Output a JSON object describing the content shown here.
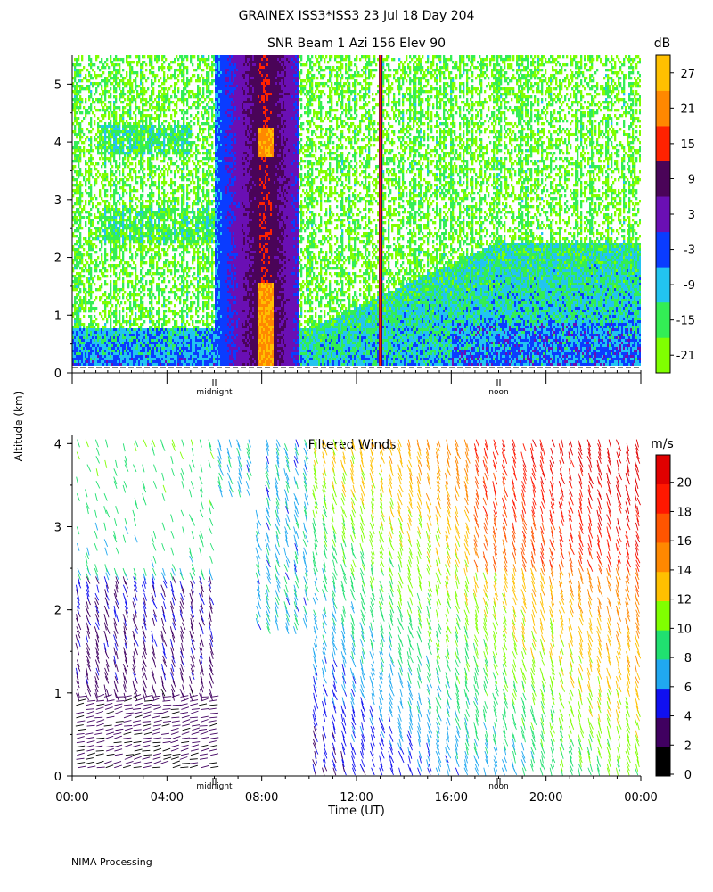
{
  "header": {
    "title": "GRAINEX ISS3*ISS3  23 Jul 18 Day 204",
    "footer": "NIMA Processing",
    "ylabel": "Altitude (km)"
  },
  "chart_data": [
    {
      "type": "heatmap",
      "title": "SNR Beam 1 Azi 156 Elev 90",
      "ylim": [
        0,
        5.5
      ],
      "yticks": [
        "0",
        "1",
        "2",
        "3",
        "4",
        "5"
      ],
      "xlim_hours": [
        0,
        24
      ],
      "markers": [
        {
          "label": "midnight",
          "hour": 6.0
        },
        {
          "label": "noon",
          "hour": 18.0
        }
      ],
      "colorbar": {
        "unit": "dB",
        "range": [
          -24,
          33
        ],
        "ticks": [
          "-21",
          "-15",
          "-9",
          "-3",
          "3",
          "9",
          "15",
          "21",
          "27"
        ],
        "colors": [
          "#80ff00",
          "#33ee55",
          "#22c4f0",
          "#0a3cff",
          "#6a0fb4",
          "#4a0458",
          "#ff2200",
          "#ff8800",
          "#ffc000"
        ]
      },
      "features": {
        "strong_band_hours": [
          7.8,
          8.4
        ],
        "strong_band_peak_altitude_km": 4.0,
        "boundary_layer_top_km": [
          0.8,
          2.3
        ],
        "vertical_streak_hour": 13.0
      }
    },
    {
      "type": "scatter",
      "title": "Filtered Winds",
      "xlabel": "Time (UT)",
      "xticks": [
        "00:00",
        "04:00",
        "08:00",
        "12:00",
        "16:00",
        "20:00",
        "00:00"
      ],
      "xtick_hours": [
        0,
        4,
        8,
        12,
        16,
        20,
        24
      ],
      "ylim": [
        0,
        4.1
      ],
      "yticks": [
        "0",
        "1",
        "2",
        "3",
        "4"
      ],
      "markers": [
        {
          "label": "midnight",
          "hour": 6.0
        },
        {
          "label": "noon",
          "hour": 18.0
        }
      ],
      "colorbar": {
        "unit": "m/s",
        "range": [
          0,
          22
        ],
        "ticks": [
          "0",
          "2",
          "4",
          "6",
          "8",
          "10",
          "12",
          "14",
          "16",
          "18",
          "20"
        ],
        "colors": [
          "#000000",
          "#400060",
          "#1010f0",
          "#20a8f0",
          "#20e070",
          "#80ff00",
          "#ffc000",
          "#ff8800",
          "#ff5500",
          "#ff1800",
          "#e00000"
        ]
      }
    }
  ]
}
